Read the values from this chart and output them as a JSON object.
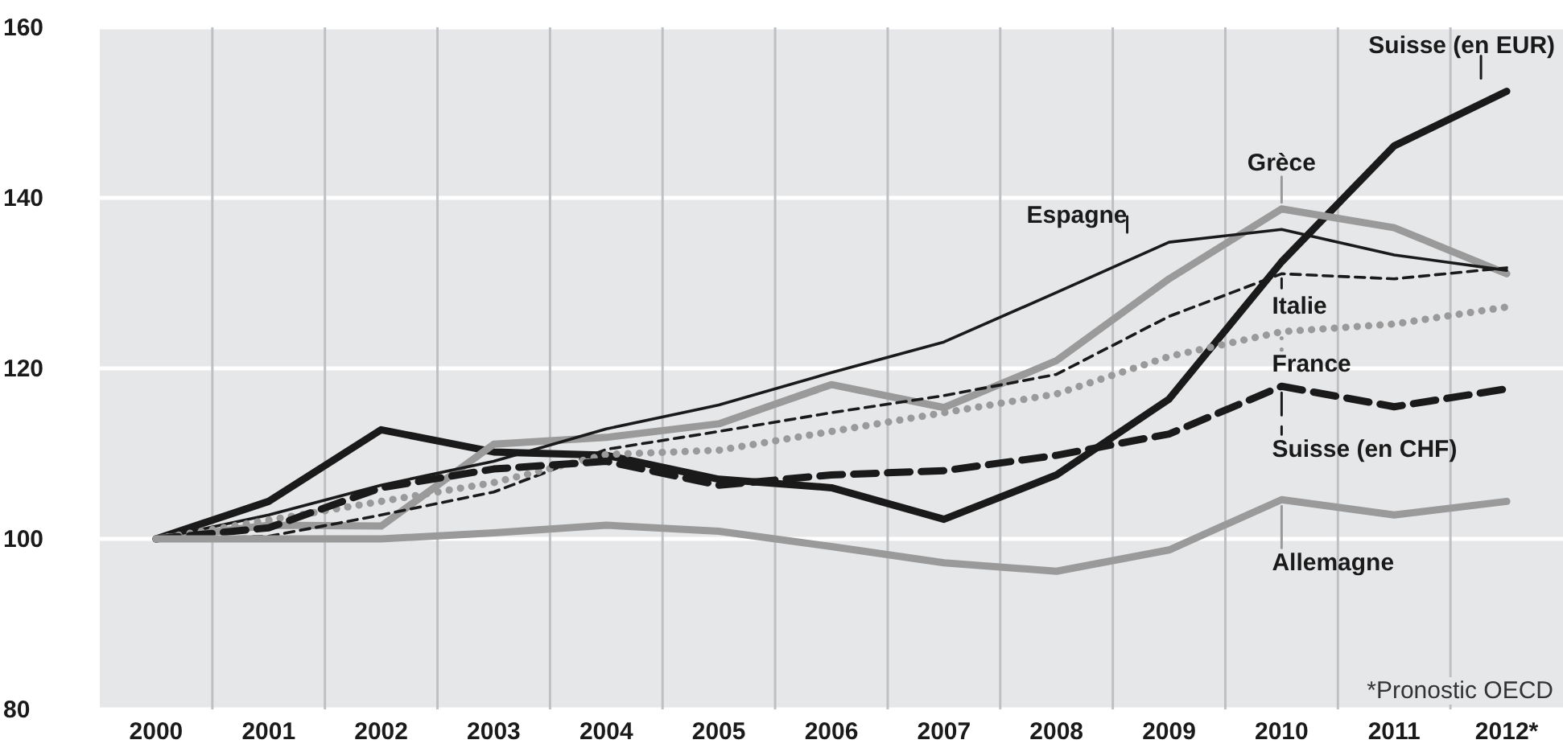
{
  "chart_data": {
    "type": "line",
    "categories": [
      "2000",
      "2001",
      "2002",
      "2003",
      "2004",
      "2005",
      "2006",
      "2007",
      "2008",
      "2009",
      "2010",
      "2011",
      "2012*"
    ],
    "ylim": [
      80,
      160
    ],
    "yticks": [
      80,
      100,
      120,
      140,
      160
    ],
    "grid": true,
    "legend": "right",
    "annotations": [
      "*Pronostic OECD"
    ],
    "series": [
      {
        "name": "Suisse (en EUR)",
        "color": "#1a1a1a",
        "line_style": "solid",
        "values": [
          100,
          104.4,
          112.8,
          110.2,
          109.8,
          107,
          106,
          102.3,
          107.5,
          116.4,
          132.5,
          146.1,
          152.5
        ]
      },
      {
        "name": "Grèce",
        "color": "#9a9a9a",
        "line_style": "solid",
        "values": [
          100,
          101.6,
          101.5,
          111.1,
          111.9,
          113.5,
          118.1,
          115.4,
          120.9,
          130.5,
          138.7,
          136.5,
          131.1
        ]
      },
      {
        "name": "Espagne",
        "color": "#1a1a1a",
        "line_style": "solid",
        "values": [
          100,
          102.8,
          106.3,
          109.1,
          112.9,
          115.7,
          119.5,
          123.1,
          128.9,
          134.8,
          136.3,
          133.3,
          131.5
        ]
      },
      {
        "name": "Italie",
        "color": "#1a1a1a",
        "line_style": "dashed",
        "values": [
          100,
          100.3,
          102.8,
          105.5,
          110.5,
          112.6,
          114.8,
          116.8,
          119.3,
          126.1,
          131.1,
          130.5,
          131.8
        ]
      },
      {
        "name": "France",
        "color": "#9a9a9a",
        "line_style": "dotted",
        "values": [
          100,
          102.2,
          104.4,
          106.6,
          109.9,
          110.4,
          112.6,
          114.8,
          117,
          121.4,
          124.3,
          125.2,
          127.2
        ]
      },
      {
        "name": "Suisse (en CHF)",
        "color": "#1a1a1a",
        "line_style": "dashed",
        "values": [
          100,
          101.3,
          106,
          108.2,
          109.1,
          106.3,
          107.5,
          108,
          109.8,
          112.3,
          117.9,
          115.5,
          117.6
        ]
      },
      {
        "name": "Allemagne",
        "color": "#9a9a9a",
        "line_style": "solid",
        "values": [
          100,
          100,
          100,
          100.7,
          101.6,
          100.9,
          99.1,
          97.2,
          96.2,
          98.7,
          104.6,
          102.8,
          104.4
        ]
      }
    ]
  }
}
